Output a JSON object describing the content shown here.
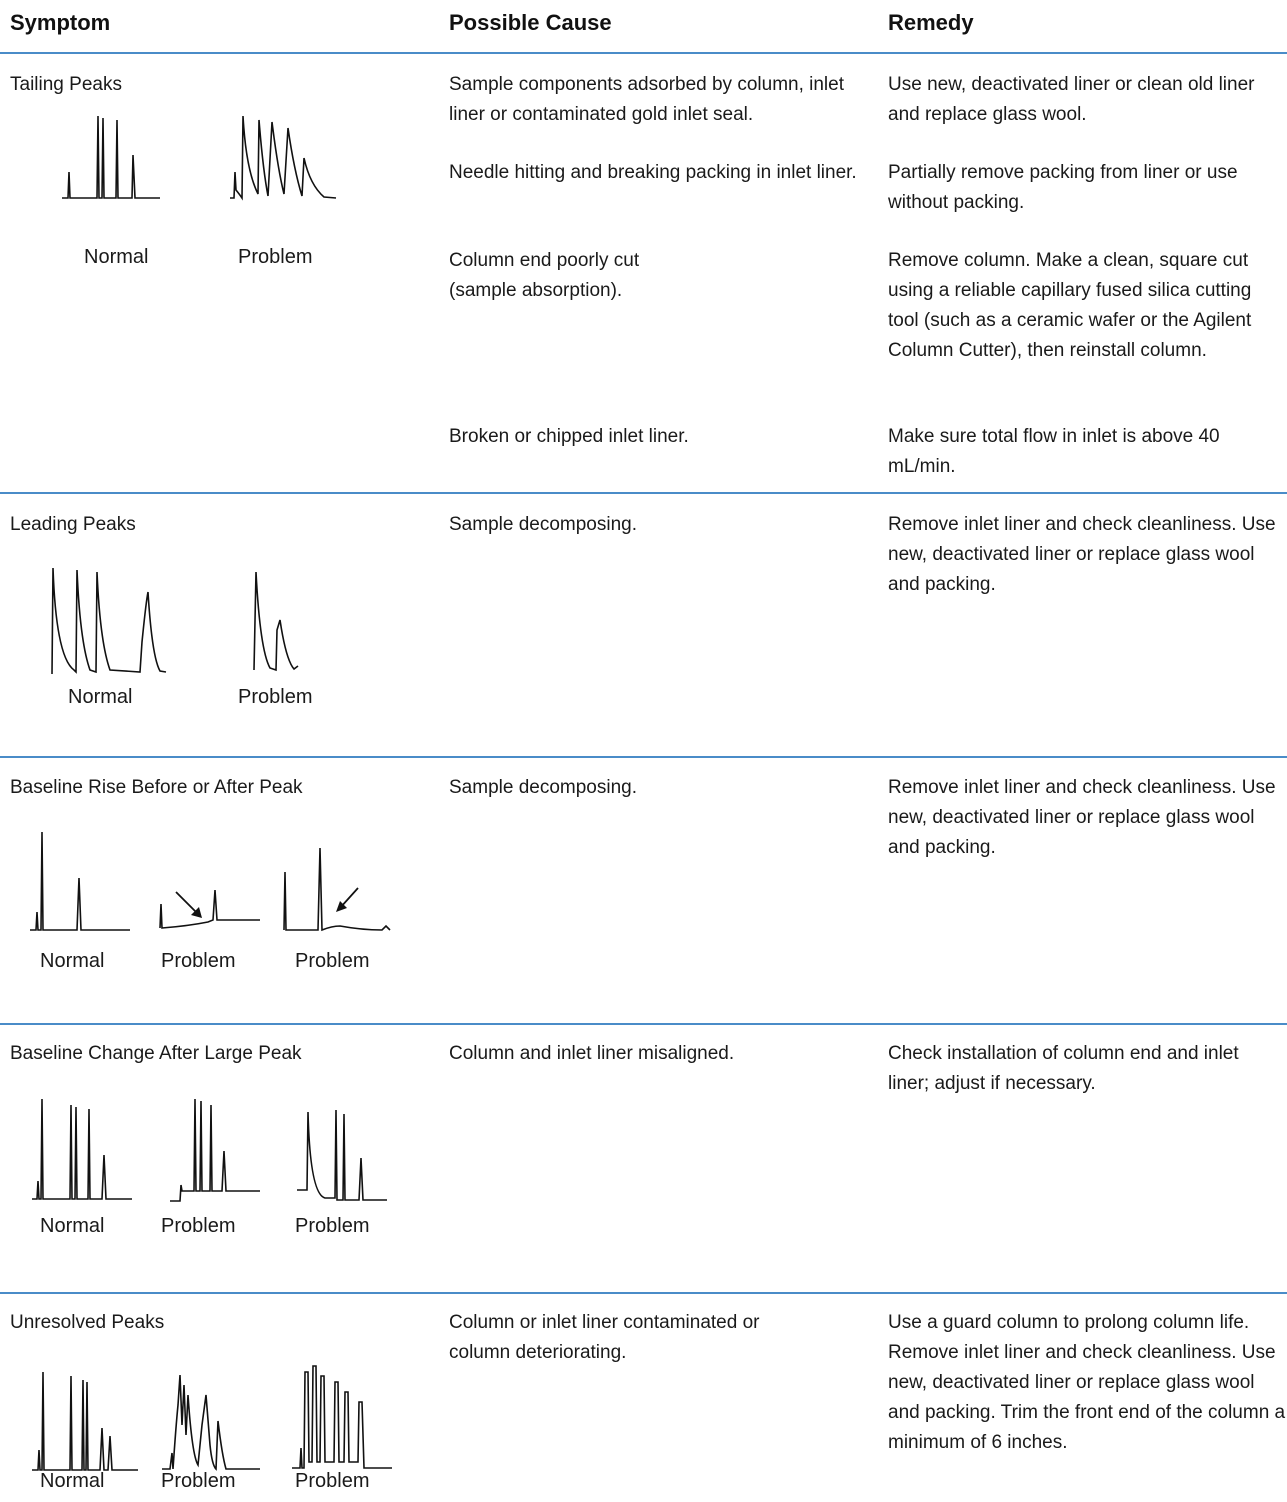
{
  "header": {
    "symptom": "Symptom",
    "cause": "Possible Cause",
    "remedy": "Remedy"
  },
  "rows": [
    {
      "symptom": "Tailing Peaks",
      "labels": [
        "Normal",
        "Problem"
      ],
      "causes": [
        "Sample components adsorbed by column, inlet liner or contaminated gold inlet seal.",
        "Needle hitting and breaking packing in inlet liner.",
        "Column end poorly cut (sample absorption).",
        "Broken or chipped inlet liner."
      ],
      "remedies": [
        "Use new, deactivated liner or clean old liner and replace glass wool.",
        "Partially remove packing from liner or use without packing.",
        "Remove column. Make a clean, square cut using a reliable capillary fused silica cutting tool (such as a ceramic wafer or the Agilent Column Cutter), then reinstall column.",
        "Make sure total flow in inlet is above 40 mL/min."
      ]
    },
    {
      "symptom": "Leading Peaks",
      "labels": [
        "Normal",
        "Problem"
      ],
      "causes": [
        "Sample decomposing."
      ],
      "remedies": [
        "Remove inlet liner and check cleanliness. Use new, deactivated liner or replace glass wool and packing."
      ]
    },
    {
      "symptom": "Baseline Rise Before or After Peak",
      "labels": [
        "Normal",
        "Problem",
        "Problem"
      ],
      "causes": [
        "Sample decomposing."
      ],
      "remedies": [
        "Remove inlet liner and check cleanliness. Use new, deactivated liner or replace glass wool and packing."
      ]
    },
    {
      "symptom": "Baseline Change After Large Peak",
      "labels": [
        "Normal",
        "Problem",
        "Problem"
      ],
      "causes": [
        "Column and inlet liner misaligned."
      ],
      "remedies": [
        "Check installation of column end and inlet liner; adjust if necessary."
      ]
    },
    {
      "symptom": "Unresolved Peaks",
      "labels": [
        "Normal",
        "Problem",
        "Problem"
      ],
      "causes": [
        "Column or inlet liner contaminated or column deteriorating."
      ],
      "remedies": [
        "Use a guard column to prolong column life. Remove inlet liner and check cleanliness. Use new, deactivated liner or replace glass wool and packing. Trim the front end of the column a minimum of 6 inches."
      ]
    }
  ],
  "colors": {
    "rule": "#4a8cc8",
    "text": "#1a1a1a"
  },
  "icons": [
    "chromatogram-normal",
    "chromatogram-problem",
    "arrow-icon"
  ]
}
